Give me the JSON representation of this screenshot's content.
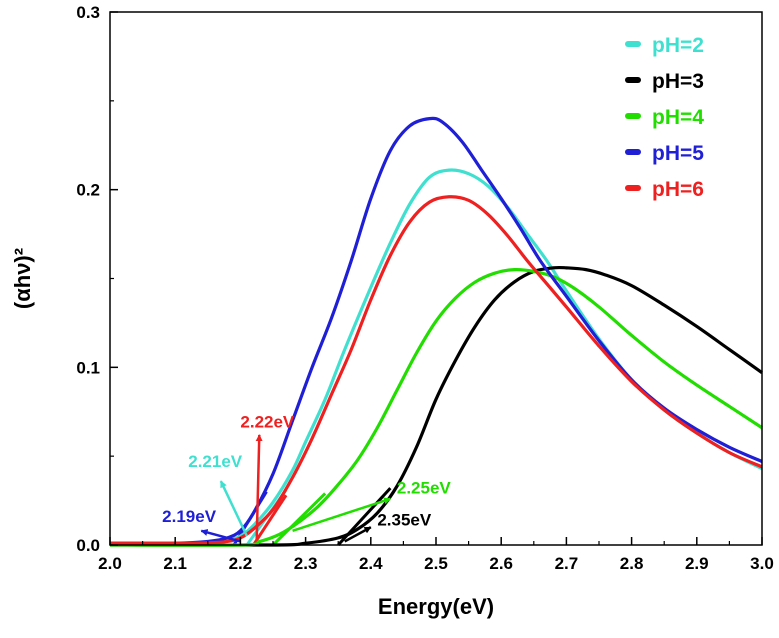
{
  "chart_data": {
    "type": "line",
    "title": "",
    "xlabel": "Energy(eV)",
    "ylabel": "(αhν)²",
    "xlim": [
      2.0,
      3.0
    ],
    "ylim": [
      0.0,
      0.3
    ],
    "xticks": [
      "2.0",
      "2.1",
      "2.2",
      "2.3",
      "2.4",
      "2.5",
      "2.6",
      "2.7",
      "2.8",
      "2.9",
      "3.0"
    ],
    "yticks": [
      "0.0",
      "0.1",
      "0.2",
      "0.3"
    ],
    "grid": false,
    "legend": "top-right",
    "series": [
      {
        "name": "pH=2",
        "color": "#40E0D0",
        "x": [
          2.0,
          2.1,
          2.15,
          2.18,
          2.2,
          2.22,
          2.25,
          2.28,
          2.3,
          2.33,
          2.36,
          2.4,
          2.43,
          2.46,
          2.49,
          2.52,
          2.55,
          2.58,
          2.61,
          2.64,
          2.67,
          2.7,
          2.75,
          2.8,
          2.85,
          2.9,
          2.95,
          3.0
        ],
        "y": [
          0.001,
          0.001,
          0.0015,
          0.0025,
          0.005,
          0.011,
          0.024,
          0.042,
          0.058,
          0.082,
          0.11,
          0.145,
          0.17,
          0.192,
          0.207,
          0.211,
          0.209,
          0.202,
          0.19,
          0.175,
          0.16,
          0.143,
          0.116,
          0.093,
          0.076,
          0.063,
          0.052,
          0.043
        ]
      },
      {
        "name": "pH=3",
        "color": "#000000",
        "x": [
          2.0,
          2.25,
          2.3,
          2.35,
          2.38,
          2.41,
          2.44,
          2.47,
          2.5,
          2.53,
          2.56,
          2.59,
          2.62,
          2.65,
          2.68,
          2.7,
          2.73,
          2.76,
          2.8,
          2.85,
          2.9,
          2.95,
          3.0
        ],
        "y": [
          0.0,
          0.0,
          0.001,
          0.004,
          0.009,
          0.018,
          0.033,
          0.055,
          0.082,
          0.104,
          0.123,
          0.138,
          0.148,
          0.154,
          0.156,
          0.156,
          0.155,
          0.152,
          0.146,
          0.135,
          0.123,
          0.11,
          0.097
        ]
      },
      {
        "name": "pH=4",
        "color": "#22DD00",
        "x": [
          2.0,
          2.2,
          2.23,
          2.26,
          2.29,
          2.32,
          2.35,
          2.38,
          2.41,
          2.44,
          2.47,
          2.5,
          2.53,
          2.56,
          2.59,
          2.62,
          2.65,
          2.68,
          2.71,
          2.75,
          2.8,
          2.85,
          2.9,
          2.95,
          3.0
        ],
        "y": [
          0.0,
          0.0,
          0.002,
          0.006,
          0.013,
          0.022,
          0.034,
          0.048,
          0.066,
          0.087,
          0.108,
          0.126,
          0.139,
          0.148,
          0.153,
          0.155,
          0.154,
          0.151,
          0.145,
          0.134,
          0.118,
          0.103,
          0.09,
          0.078,
          0.066
        ]
      },
      {
        "name": "pH=5",
        "color": "#1F1FD6",
        "x": [
          2.0,
          2.1,
          2.15,
          2.18,
          2.2,
          2.22,
          2.25,
          2.28,
          2.31,
          2.34,
          2.37,
          2.4,
          2.43,
          2.46,
          2.49,
          2.51,
          2.54,
          2.57,
          2.6,
          2.63,
          2.66,
          2.7,
          2.75,
          2.8,
          2.85,
          2.9,
          2.95,
          3.0
        ],
        "y": [
          0.001,
          0.001,
          0.002,
          0.004,
          0.008,
          0.018,
          0.04,
          0.07,
          0.1,
          0.128,
          0.16,
          0.195,
          0.222,
          0.236,
          0.24,
          0.238,
          0.227,
          0.211,
          0.195,
          0.178,
          0.16,
          0.14,
          0.115,
          0.093,
          0.077,
          0.065,
          0.055,
          0.047
        ]
      },
      {
        "name": "pH=6",
        "color": "#EE2020",
        "x": [
          2.0,
          2.1,
          2.15,
          2.18,
          2.2,
          2.22,
          2.25,
          2.28,
          2.31,
          2.34,
          2.37,
          2.4,
          2.43,
          2.46,
          2.49,
          2.52,
          2.55,
          2.58,
          2.61,
          2.64,
          2.67,
          2.7,
          2.75,
          2.8,
          2.85,
          2.9,
          2.95,
          3.0
        ],
        "y": [
          0.001,
          0.001,
          0.0012,
          0.002,
          0.004,
          0.009,
          0.02,
          0.038,
          0.06,
          0.085,
          0.11,
          0.138,
          0.163,
          0.182,
          0.193,
          0.196,
          0.194,
          0.186,
          0.174,
          0.16,
          0.147,
          0.134,
          0.112,
          0.092,
          0.076,
          0.063,
          0.052,
          0.044
        ]
      }
    ],
    "tangents": [
      {
        "color": "#40E0D0",
        "x": [
          2.21,
          2.27
        ],
        "y": [
          0.0,
          0.031
        ]
      },
      {
        "color": "#000000",
        "x": [
          2.35,
          2.43
        ],
        "y": [
          0.0,
          0.032
        ]
      },
      {
        "color": "#22DD00",
        "x": [
          2.25,
          2.33
        ],
        "y": [
          0.0,
          0.029
        ]
      },
      {
        "color": "#1F1FD6",
        "x": [
          2.19,
          2.24
        ],
        "y": [
          0.0,
          0.03
        ]
      },
      {
        "color": "#EE2020",
        "x": [
          2.22,
          2.27
        ],
        "y": [
          0.0,
          0.028
        ]
      }
    ],
    "annotations": [
      {
        "text": "2.22eV",
        "color": "#EE2020",
        "label_x": 2.2,
        "label_y": 0.066,
        "arrow_from": [
          2.225,
          0.003
        ],
        "arrow_to": [
          2.229,
          0.062
        ]
      },
      {
        "text": "2.21eV",
        "color": "#40E0D0",
        "label_x": 2.12,
        "label_y": 0.044,
        "arrow_from": [
          2.21,
          0.005
        ],
        "arrow_to": [
          2.17,
          0.036
        ]
      },
      {
        "text": "2.19eV",
        "color": "#1F1FD6",
        "label_x": 2.08,
        "label_y": 0.013,
        "arrow_from": [
          2.2,
          0.002
        ],
        "arrow_to": [
          2.14,
          0.008
        ]
      },
      {
        "text": "2.25eV",
        "color": "#22DD00",
        "label_x": 2.44,
        "label_y": 0.029,
        "arrow_from": [
          2.28,
          0.008
        ],
        "arrow_to": [
          2.43,
          0.026
        ]
      },
      {
        "text": "2.35eV",
        "color": "#000000",
        "label_x": 2.41,
        "label_y": 0.011,
        "arrow_from": [
          2.36,
          0.002
        ],
        "arrow_to": [
          2.4,
          0.01
        ]
      }
    ]
  }
}
